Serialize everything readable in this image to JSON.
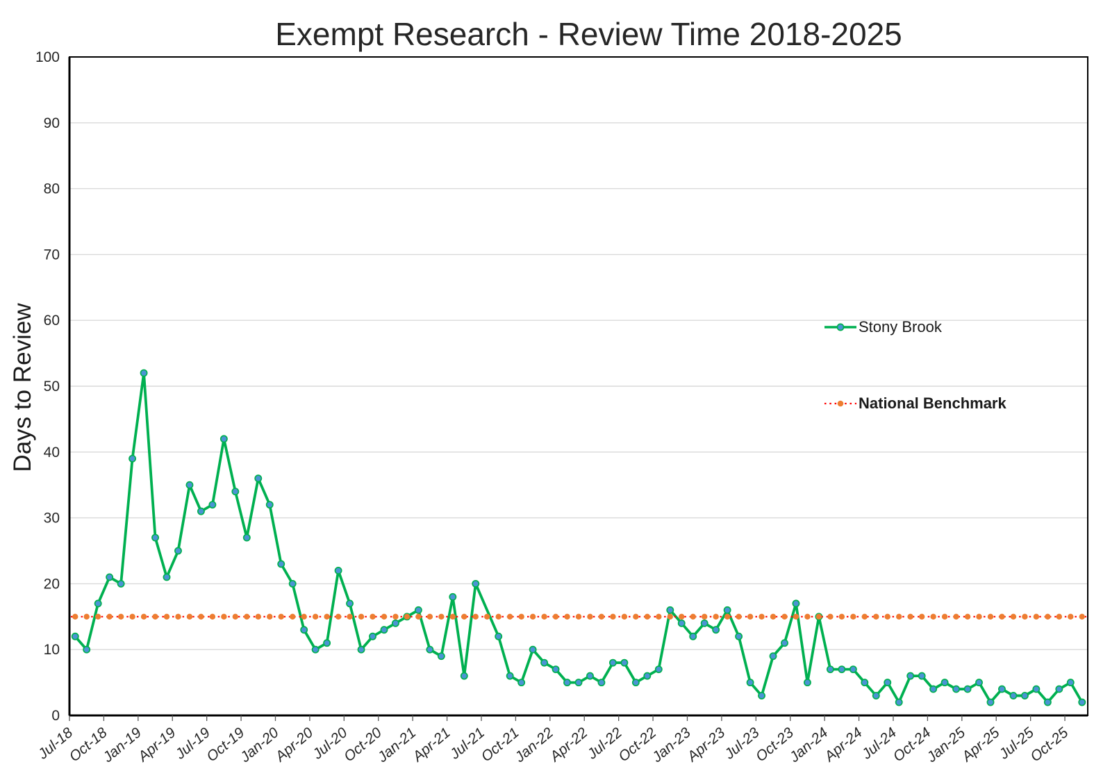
{
  "title": "Exempt Research - Review Time 2018-2025",
  "colors": {
    "stony_brook_line": "#00B050",
    "stony_brook_marker": "#4B94D4",
    "benchmark_line": "#FF0000",
    "benchmark_marker": "#ED7D31",
    "gridline": "#D9D9D9",
    "axis": "#000000",
    "tick": "#595959",
    "text": "#262626"
  },
  "chart_data": {
    "type": "line",
    "title": "Exempt Research - Review Time 2018-2025",
    "xlabel": "",
    "ylabel": "Days to Review",
    "ylim": [
      0,
      100
    ],
    "ytick_step": 10,
    "x_label_every": 3,
    "grid": "horizontal",
    "legend_position": "middle-right",
    "categories": [
      "Jul-18",
      "Aug-18",
      "Sep-18",
      "Oct-18",
      "Nov-18",
      "Dec-18",
      "Jan-19",
      "Feb-19",
      "Mar-19",
      "Apr-19",
      "May-19",
      "Jun-19",
      "Jul-19",
      "Aug-19",
      "Sep-19",
      "Oct-19",
      "Nov-19",
      "Dec-19",
      "Jan-20",
      "Feb-20",
      "Mar-20",
      "Apr-20",
      "May-20",
      "Jun-20",
      "Jul-20",
      "Aug-20",
      "Sep-20",
      "Oct-20",
      "Nov-20",
      "Dec-20",
      "Jan-21",
      "Feb-21",
      "Mar-21",
      "Apr-21",
      "May-21",
      "Jun-21",
      "Jul-21",
      "Aug-21",
      "Sep-21",
      "Oct-21",
      "Nov-21",
      "Dec-21",
      "Jan-22",
      "Feb-22",
      "Mar-22",
      "Apr-22",
      "May-22",
      "Jun-22",
      "Jul-22",
      "Aug-22",
      "Sep-22",
      "Oct-22",
      "Nov-22",
      "Dec-22",
      "Jan-23",
      "Feb-23",
      "Mar-23",
      "Apr-23",
      "May-23",
      "Jun-23",
      "Jul-23",
      "Aug-23",
      "Sep-23",
      "Oct-23",
      "Nov-23",
      "Dec-23",
      "Jan-24",
      "Feb-24",
      "Mar-24",
      "Apr-24",
      "May-24",
      "Jun-24",
      "Jul-24",
      "Aug-24",
      "Sep-24",
      "Oct-24",
      "Nov-24",
      "Dec-24",
      "Jan-25",
      "Feb-25",
      "Mar-25",
      "Apr-25",
      "May-25",
      "Jun-25",
      "Jul-25",
      "Aug-25",
      "Sep-25",
      "Oct-25",
      "Nov-25"
    ],
    "series": [
      {
        "name": "Stony Brook",
        "style": "solid-line-with-markers",
        "values": [
          12,
          10,
          17,
          21,
          20,
          39,
          52,
          27,
          21,
          25,
          35,
          31,
          32,
          42,
          34,
          27,
          36,
          32,
          23,
          20,
          13,
          10,
          11,
          22,
          17,
          10,
          12,
          13,
          14,
          15,
          16,
          10,
          9,
          18,
          6,
          20,
          16,
          12,
          6,
          5,
          10,
          8,
          7,
          5,
          5,
          6,
          5,
          8,
          8,
          5,
          6,
          7,
          16,
          14,
          12,
          14,
          13,
          16,
          12,
          5,
          3,
          9,
          11,
          17,
          5,
          15,
          7,
          7,
          7,
          5,
          3,
          5,
          2,
          6,
          6,
          4,
          5,
          4,
          4,
          5,
          2,
          4,
          3,
          3,
          4,
          2,
          4,
          5,
          2
        ]
      },
      {
        "name": "National Benchmark",
        "style": "dotted-line-with-markers",
        "constant_value": 15
      }
    ],
    "hidden_markers": [
      "Jul-21"
    ]
  }
}
